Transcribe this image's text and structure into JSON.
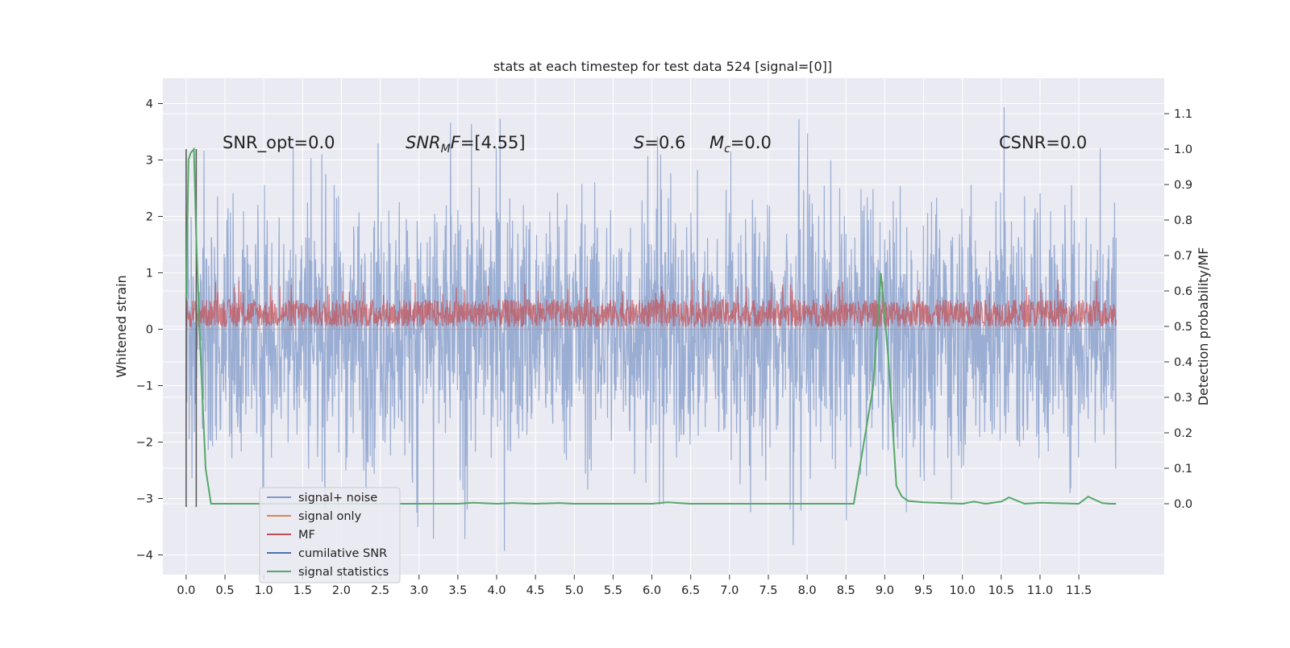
{
  "chart_data": {
    "type": "line",
    "title": "stats at each timestep for test data 524 [signal=[0]]",
    "ylabel": "Whitened strain",
    "ylabel_right": "Detection probability/MF",
    "xlabel": "",
    "xlim": [
      -0.3,
      12.6
    ],
    "ylim": [
      -4.35,
      4.45
    ],
    "ylim_right": [
      -0.2,
      1.2
    ],
    "x_ticks": [
      0.0,
      0.5,
      1.0,
      1.5,
      2.0,
      2.5,
      3.0,
      3.5,
      4.0,
      4.5,
      5.0,
      5.5,
      6.0,
      6.5,
      7.0,
      7.5,
      8.0,
      8.5,
      9.0,
      9.5,
      10.0,
      10.5,
      11.0,
      11.5
    ],
    "x_tick_labels": [
      "0.0",
      "0.5",
      "1.0",
      "1.5",
      "2.0",
      "2.5",
      "3.0",
      "3.5",
      "4.0",
      "4.5",
      "5.0",
      "5.5",
      "6.0",
      "6.5",
      "7.0",
      "7.5",
      "8.0",
      "8.5",
      "9.0",
      "9.5",
      "10.0",
      "10.5",
      "11.0",
      "11.5"
    ],
    "y_ticks": [
      4,
      3,
      2,
      1,
      0,
      -1,
      -2,
      -3,
      -4
    ],
    "y_tick_labels": [
      "4",
      "3",
      "2",
      "1",
      "0",
      "−1",
      "−2",
      "−3",
      "−4"
    ],
    "y_right_ticks": [
      1.1,
      1.0,
      0.9,
      0.8,
      0.7,
      0.6,
      0.5,
      0.4,
      0.3,
      0.2,
      0.1,
      0.0
    ],
    "y_right_tick_labels": [
      "1.1",
      "1.0",
      "0.9",
      "0.8",
      "0.7",
      "0.6",
      "0.5",
      "0.4",
      "0.3",
      "0.2",
      "0.1",
      "0.0"
    ],
    "grid": true,
    "legend_position": "lower-left",
    "annotations": {
      "snr_opt": "SNR_opt=0.0",
      "snr_mf": "=[4.55]",
      "s": "=0.6",
      "mc": "=0.0",
      "csnr": "CSNR=0.0"
    },
    "vertical_markers_x": [
      0.0,
      0.13
    ],
    "series": [
      {
        "name": "signal+ noise",
        "color": "#7f98c8",
        "axis": "left",
        "x_range": [
          0.0,
          11.98
        ],
        "sample_count": 2400,
        "typical_band": [
          -1.9,
          1.9
        ],
        "peak_max": 4.1,
        "peak_min": -4.05
      },
      {
        "name": "signal only",
        "color": "#dd8452",
        "axis": "left",
        "x": [
          0.0,
          11.98
        ],
        "y": [
          0.0,
          0.0
        ]
      },
      {
        "name": "MF",
        "color": "#c44e52",
        "axis": "left",
        "x_range": [
          0.0,
          11.98
        ],
        "sample_count": 2400,
        "typical_band": [
          0.05,
          0.55
        ],
        "peak_max": 0.88
      },
      {
        "name": "cumilative SNR",
        "color": "#4c72b0",
        "axis": "right",
        "x": [],
        "y": []
      },
      {
        "name": "signal statistics",
        "color": "#55a868",
        "axis": "right",
        "x": [
          0.0,
          0.03,
          0.06,
          0.1,
          0.13,
          0.18,
          0.25,
          0.32,
          0.5,
          1.0,
          2.0,
          3.0,
          3.5,
          3.7,
          4.0,
          4.2,
          4.5,
          4.8,
          5.0,
          5.5,
          6.0,
          6.2,
          6.5,
          7.0,
          8.0,
          8.6,
          8.85,
          8.95,
          9.05,
          9.15,
          9.22,
          9.3,
          9.5,
          10.0,
          10.15,
          10.3,
          10.5,
          10.6,
          10.8,
          11.0,
          11.5,
          11.62,
          11.8,
          11.9,
          11.98
        ],
        "y": [
          0.58,
          0.97,
          0.99,
          1.0,
          0.75,
          0.45,
          0.1,
          0.0,
          0.0,
          0.0,
          0.0,
          0.0,
          0.0,
          0.003,
          0.0,
          0.002,
          0.0,
          0.002,
          0.0,
          0.0,
          0.0,
          0.004,
          0.0,
          0.0,
          0.0,
          0.0,
          0.33,
          0.65,
          0.4,
          0.05,
          0.02,
          0.008,
          0.004,
          0.0,
          0.006,
          0.0,
          0.006,
          0.018,
          0.0,
          0.003,
          0.0,
          0.02,
          0.002,
          0.0,
          0.0
        ]
      }
    ]
  }
}
